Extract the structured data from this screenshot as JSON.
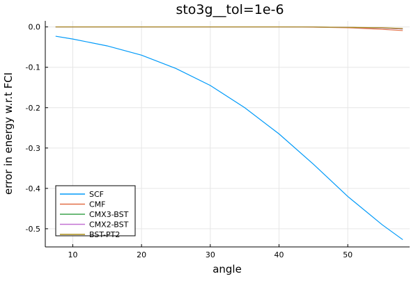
{
  "chart_data": {
    "type": "line",
    "title": "sto3g__tol=1e-6",
    "xlabel": "angle",
    "ylabel": "error in energy w.r.t FCI",
    "xlim": [
      6,
      59
    ],
    "ylim": [
      -0.545,
      0.015
    ],
    "xticks": [
      10,
      20,
      30,
      40,
      50
    ],
    "yticks": [
      0.0,
      -0.1,
      -0.2,
      -0.3,
      -0.4,
      -0.5
    ],
    "ytick_labels": [
      "0.0",
      "-0.1",
      "-0.2",
      "-0.3",
      "-0.4",
      "-0.5"
    ],
    "grid": true,
    "legend_position": "bottom-left",
    "x": [
      7.5,
      10,
      15,
      20,
      25,
      30,
      35,
      40,
      45,
      50,
      55,
      58
    ],
    "series": [
      {
        "name": "SCF",
        "color": "#009af9",
        "values": [
          -0.023,
          -0.03,
          -0.047,
          -0.07,
          -0.103,
          -0.145,
          -0.2,
          -0.265,
          -0.34,
          -0.42,
          -0.49,
          -0.527
        ]
      },
      {
        "name": "CMF",
        "color": "#e26f46",
        "values": [
          0.0,
          0.0,
          0.0,
          0.0,
          0.0,
          0.0,
          0.0,
          0.0,
          -0.0005,
          -0.002,
          -0.006,
          -0.009
        ]
      },
      {
        "name": "CMX3-BST",
        "color": "#3da44d",
        "values": [
          0.0,
          0.0,
          0.0,
          0.0,
          0.0,
          0.0,
          0.0,
          0.0,
          -0.0003,
          -0.001,
          -0.003,
          -0.005
        ]
      },
      {
        "name": "CMX2-BST",
        "color": "#c271d2",
        "values": [
          0.0,
          0.0,
          0.0,
          0.0,
          0.0,
          0.0,
          0.0,
          0.0,
          -0.0003,
          -0.001,
          -0.003,
          -0.005
        ]
      },
      {
        "name": "BST-PT2",
        "color": "#ac8d18",
        "values": [
          0.0,
          0.0,
          0.0,
          0.0,
          0.0,
          0.0,
          0.0,
          0.0,
          -0.0002,
          -0.001,
          -0.002,
          -0.004
        ]
      }
    ]
  }
}
